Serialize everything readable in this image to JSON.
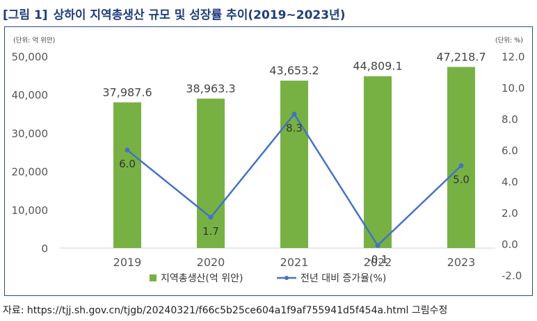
{
  "header": {
    "figure_label": "[그림 1]",
    "title": "상하이 지역총생산 규모 및 성장률 추이(2019~2023년)"
  },
  "units": {
    "left": "(단위: 억 위안)",
    "right": "(단위: %)"
  },
  "source": {
    "text": "자료: https://tjj.sh.gov.cn/tjgb/20240321/f66c5b25ce604a1f9af755941d5f454a.html 그림수정"
  },
  "colors": {
    "bar": "#77b144",
    "line": "#4472c4",
    "frame": "#2b4a84",
    "title": "#1f3d7a"
  },
  "chart_data": {
    "type": "bar",
    "categories": [
      "2019",
      "2020",
      "2021",
      "2022",
      "2023"
    ],
    "series": [
      {
        "name": "지역총생산(억 위안)",
        "type": "bar",
        "axis": "left",
        "values": [
          37987.6,
          38963.3,
          43653.2,
          44809.1,
          47218.7
        ],
        "labels": [
          "37,987.6",
          "38,963.3",
          "43,653.2",
          "44,809.1",
          "47,218.7"
        ]
      },
      {
        "name": "전년 대비 증가율(%)",
        "type": "line",
        "axis": "right",
        "values": [
          6.0,
          1.7,
          8.3,
          -0.1,
          5.0
        ],
        "labels": [
          "6.0",
          "1.7",
          "8.3",
          "-0.1",
          "5.0"
        ]
      }
    ],
    "left_axis": {
      "ylim": [
        0,
        50000
      ],
      "ticks": [
        0,
        10000,
        20000,
        30000,
        40000,
        50000
      ],
      "tick_labels": [
        "0",
        "10,000",
        "20,000",
        "30,000",
        "40,000",
        "50,000"
      ]
    },
    "right_axis": {
      "ylim": [
        -2,
        12
      ],
      "ticks": [
        -2,
        0,
        2,
        4,
        6,
        8,
        10,
        12
      ],
      "tick_labels": [
        "-2.0",
        "0.0",
        "2.0",
        "4.0",
        "6.0",
        "8.0",
        "10.0",
        "12.0"
      ]
    },
    "legend_position": "bottom-center",
    "grid": false
  }
}
